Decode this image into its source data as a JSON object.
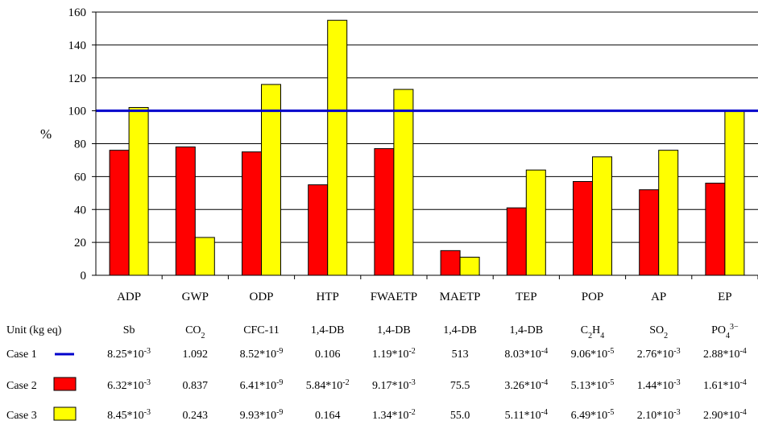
{
  "chart_data": {
    "type": "bar",
    "ylabel": "%",
    "ylim": [
      0,
      160
    ],
    "yticks": [
      "0",
      "20",
      "40",
      "60",
      "80",
      "100",
      "120",
      "140",
      "160"
    ],
    "grid": true,
    "categories": [
      "ADP",
      "GWP",
      "ODP",
      "HTP",
      "FWAETP",
      "MAETP",
      "TEP",
      "POP",
      "AP",
      "EP"
    ],
    "baseline": {
      "name": "Case 1",
      "value": 100,
      "color": "#0000cc"
    },
    "series": [
      {
        "name": "Case 2",
        "color": "#ff0000",
        "values": [
          76,
          78,
          75,
          55,
          77,
          15,
          41,
          57,
          52,
          56
        ]
      },
      {
        "name": "Case 3",
        "color": "#ffff00",
        "values": [
          102,
          23,
          116,
          155,
          113,
          11,
          64,
          72,
          76,
          100
        ]
      }
    ],
    "table": {
      "header_label": "Unit (kg eq)",
      "units": [
        {
          "base": "Sb"
        },
        {
          "base": "CO",
          "sub": "2"
        },
        {
          "base": "CFC-11"
        },
        {
          "base": "1,4-DB"
        },
        {
          "base": "1,4-DB"
        },
        {
          "base": "1,4-DB"
        },
        {
          "base": "1,4-DB"
        },
        {
          "base": "C",
          "sub": "2",
          "base2": "H",
          "sub2": "4"
        },
        {
          "base": "SO",
          "sub": "2"
        },
        {
          "base": "PO",
          "sub": "4",
          "sup": "3−"
        }
      ],
      "rows": [
        {
          "label": "Case 1",
          "swatch": "line",
          "color": "#0000cc",
          "values": [
            {
              "m": "8.25*10",
              "e": "-3"
            },
            {
              "m": "1.092"
            },
            {
              "m": "8.52*10",
              "e": "-9"
            },
            {
              "m": "0.106"
            },
            {
              "m": "1.19*10",
              "e": "-2"
            },
            {
              "m": "513"
            },
            {
              "m": "8.03*10",
              "e": "-4"
            },
            {
              "m": "9.06*10",
              "e": "-5"
            },
            {
              "m": "2.76*10",
              "e": "-3"
            },
            {
              "m": "2.88*10",
              "e": "-4"
            }
          ]
        },
        {
          "label": "Case 2",
          "swatch": "box",
          "color": "#ff0000",
          "values": [
            {
              "m": "6.32*10",
              "e": "-3"
            },
            {
              "m": "0.837"
            },
            {
              "m": "6.41*10",
              "e": "-9"
            },
            {
              "m": "5.84*10",
              "e": "-2"
            },
            {
              "m": "9.17*10",
              "e": "-3"
            },
            {
              "m": "75.5"
            },
            {
              "m": "3.26*10",
              "e": "-4"
            },
            {
              "m": "5.13*10",
              "e": "-5"
            },
            {
              "m": "1.44*10",
              "e": "-3"
            },
            {
              "m": "1.61*10",
              "e": "-4"
            }
          ]
        },
        {
          "label": "Case 3",
          "swatch": "box",
          "color": "#ffff00",
          "values": [
            {
              "m": "8.45*10",
              "e": "-3"
            },
            {
              "m": "0.243"
            },
            {
              "m": "9.93*10",
              "e": "-9"
            },
            {
              "m": "0.164"
            },
            {
              "m": "1.34*10",
              "e": "-2"
            },
            {
              "m": "55.0"
            },
            {
              "m": "5.11*10",
              "e": "-4"
            },
            {
              "m": "6.49*10",
              "e": "-5"
            },
            {
              "m": "2.10*10",
              "e": "-3"
            },
            {
              "m": "2.90*10",
              "e": "-4"
            }
          ]
        }
      ]
    }
  }
}
